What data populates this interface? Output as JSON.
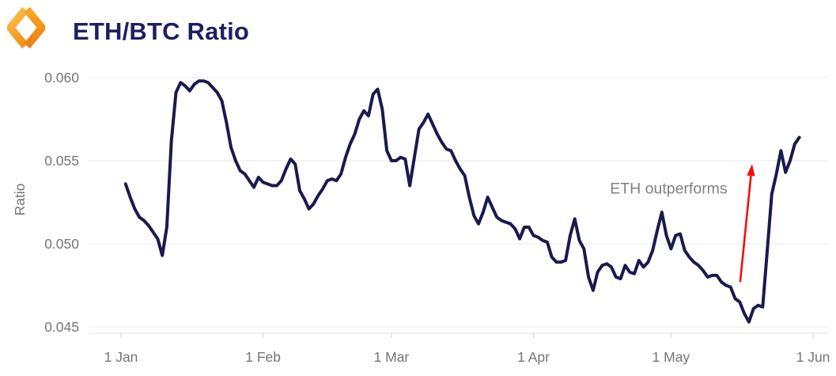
{
  "header": {
    "title": "ETH/BTC Ratio"
  },
  "colors": {
    "background": "#ffffff",
    "line": "#1a1a4d",
    "title": "#1f1f60",
    "axis_text": "#757575",
    "grid": "#e9e9ec",
    "axis_line": "#e2e2e2",
    "tick": "#cfcfcf",
    "annotation_text": "#808080",
    "arrow": "#f30e0e",
    "logo_orange_light": "#ffc54f",
    "logo_orange": "#f5921c",
    "logo_orange_top": "#f9a824",
    "logo_orange_dark": "#ec7d15"
  },
  "chart_data": {
    "type": "line",
    "title": "ETH/BTC Ratio",
    "xlabel": "",
    "ylabel": "Ratio",
    "grid": "horizontal",
    "legend": "none",
    "ylim": [
      0.045,
      0.06
    ],
    "yticks": [
      0.06,
      0.055,
      0.05,
      0.045
    ],
    "ytick_labels": [
      "0.060",
      "0.055",
      "0.050",
      "0.045"
    ],
    "x_unit": "days since 1 Jan",
    "xlim_days": [
      0,
      151
    ],
    "xtick_days": [
      0,
      31,
      59,
      90,
      120,
      151
    ],
    "xtick_labels": [
      "1 Jan",
      "1 Feb",
      "1 Mar",
      "1 Apr",
      "1 May",
      "1 Jun"
    ],
    "annotation": {
      "text": "ETH outperforms",
      "text_color": "#808080",
      "arrow_color": "#f30e0e",
      "text_at": [
        119.5,
        0.0533
      ],
      "arrow_from": [
        135.1,
        0.0477
      ],
      "arrow_to": [
        137.7,
        0.0548
      ]
    },
    "series": [
      {
        "name": "ETH/BTC ratio",
        "color": "#1a1a4d",
        "points": [
          [
            1,
            0.0536
          ],
          [
            2,
            0.0528
          ],
          [
            3,
            0.0521
          ],
          [
            4,
            0.0516
          ],
          [
            5,
            0.0514
          ],
          [
            6,
            0.0511
          ],
          [
            7,
            0.0507
          ],
          [
            8,
            0.0503
          ],
          [
            9,
            0.0493
          ],
          [
            10,
            0.051
          ],
          [
            11,
            0.0562
          ],
          [
            12,
            0.0591
          ],
          [
            13,
            0.0597
          ],
          [
            14,
            0.0595
          ],
          [
            15,
            0.0592
          ],
          [
            16,
            0.0596
          ],
          [
            17,
            0.0598
          ],
          [
            18,
            0.0598
          ],
          [
            19,
            0.0597
          ],
          [
            20,
            0.0594
          ],
          [
            21,
            0.0591
          ],
          [
            22,
            0.0586
          ],
          [
            23,
            0.0573
          ],
          [
            24,
            0.0558
          ],
          [
            25,
            0.055
          ],
          [
            26,
            0.0544
          ],
          [
            27,
            0.0542
          ],
          [
            28,
            0.0538
          ],
          [
            29,
            0.0534
          ],
          [
            30,
            0.054
          ],
          [
            31,
            0.0537
          ],
          [
            32,
            0.0536
          ],
          [
            33,
            0.0535
          ],
          [
            34,
            0.0535
          ],
          [
            35,
            0.0538
          ],
          [
            36,
            0.0545
          ],
          [
            37,
            0.0551
          ],
          [
            38,
            0.0548
          ],
          [
            39,
            0.0532
          ],
          [
            40,
            0.0527
          ],
          [
            41,
            0.0521
          ],
          [
            42,
            0.0524
          ],
          [
            43,
            0.0529
          ],
          [
            44,
            0.0533
          ],
          [
            45,
            0.0538
          ],
          [
            46,
            0.0539
          ],
          [
            47,
            0.0538
          ],
          [
            48,
            0.0542
          ],
          [
            49,
            0.0552
          ],
          [
            50,
            0.056
          ],
          [
            51,
            0.0566
          ],
          [
            52,
            0.0575
          ],
          [
            53,
            0.058
          ],
          [
            54,
            0.0577
          ],
          [
            55,
            0.059
          ],
          [
            56,
            0.0593
          ],
          [
            57,
            0.0581
          ],
          [
            58,
            0.0556
          ],
          [
            59,
            0.055
          ],
          [
            60,
            0.055
          ],
          [
            61,
            0.0552
          ],
          [
            62,
            0.0551
          ],
          [
            63,
            0.0535
          ],
          [
            64,
            0.0552
          ],
          [
            65,
            0.0569
          ],
          [
            66,
            0.0573
          ],
          [
            67,
            0.0578
          ],
          [
            68,
            0.0572
          ],
          [
            69,
            0.0566
          ],
          [
            70,
            0.0561
          ],
          [
            71,
            0.0557
          ],
          [
            72,
            0.0556
          ],
          [
            73,
            0.055
          ],
          [
            74,
            0.0545
          ],
          [
            75,
            0.0541
          ],
          [
            76,
            0.0528
          ],
          [
            77,
            0.0517
          ],
          [
            78,
            0.0512
          ],
          [
            79,
            0.0519
          ],
          [
            80,
            0.0528
          ],
          [
            81,
            0.0522
          ],
          [
            82,
            0.0516
          ],
          [
            83,
            0.0514
          ],
          [
            84,
            0.0513
          ],
          [
            85,
            0.0512
          ],
          [
            86,
            0.0509
          ],
          [
            87,
            0.0503
          ],
          [
            88,
            0.051
          ],
          [
            89,
            0.051
          ],
          [
            90,
            0.0505
          ],
          [
            91,
            0.0504
          ],
          [
            92,
            0.0502
          ],
          [
            93,
            0.0501
          ],
          [
            94,
            0.0492
          ],
          [
            95,
            0.0489
          ],
          [
            96,
            0.0489
          ],
          [
            97,
            0.049
          ],
          [
            98,
            0.0505
          ],
          [
            99,
            0.0515
          ],
          [
            100,
            0.0502
          ],
          [
            101,
            0.0497
          ],
          [
            102,
            0.048
          ],
          [
            103,
            0.0472
          ],
          [
            104,
            0.0483
          ],
          [
            105,
            0.0487
          ],
          [
            106,
            0.0488
          ],
          [
            107,
            0.0486
          ],
          [
            108,
            0.048
          ],
          [
            109,
            0.0479
          ],
          [
            110,
            0.0487
          ],
          [
            111,
            0.0483
          ],
          [
            112,
            0.0482
          ],
          [
            113,
            0.049
          ],
          [
            114,
            0.0486
          ],
          [
            115,
            0.0489
          ],
          [
            116,
            0.0496
          ],
          [
            117,
            0.0508
          ],
          [
            118,
            0.0519
          ],
          [
            119,
            0.0505
          ],
          [
            120,
            0.0497
          ],
          [
            121,
            0.0505
          ],
          [
            122,
            0.0506
          ],
          [
            123,
            0.0496
          ],
          [
            124,
            0.0492
          ],
          [
            125,
            0.0489
          ],
          [
            126,
            0.0487
          ],
          [
            127,
            0.0484
          ],
          [
            128,
            0.048
          ],
          [
            129,
            0.0481
          ],
          [
            130,
            0.0481
          ],
          [
            131,
            0.0477
          ],
          [
            132,
            0.0475
          ],
          [
            133,
            0.0474
          ],
          [
            134,
            0.0467
          ],
          [
            135,
            0.0465
          ],
          [
            136,
            0.0458
          ],
          [
            137,
            0.0453
          ],
          [
            138,
            0.0461
          ],
          [
            139,
            0.0463
          ],
          [
            140,
            0.0462
          ],
          [
            141,
            0.0496
          ],
          [
            142,
            0.053
          ],
          [
            143,
            0.0542
          ],
          [
            144,
            0.0556
          ],
          [
            145,
            0.0543
          ],
          [
            146,
            0.055
          ],
          [
            147,
            0.056
          ],
          [
            148,
            0.0564
          ]
        ]
      }
    ]
  }
}
